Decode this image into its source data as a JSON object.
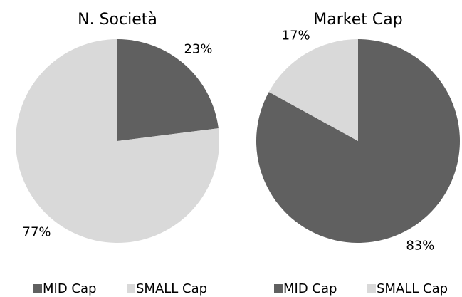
{
  "chart_data": [
    {
      "type": "pie",
      "title": "N. Società",
      "categories": [
        "MID Cap",
        "SMALL Cap"
      ],
      "values": [
        23,
        77
      ],
      "value_labels": [
        "23%",
        "77%"
      ],
      "colors": [
        "#606060",
        "#d9d9d9"
      ]
    },
    {
      "type": "pie",
      "title": "Market Cap",
      "categories": [
        "MID Cap",
        "SMALL Cap"
      ],
      "values": [
        83,
        17
      ],
      "value_labels": [
        "83%",
        "17%"
      ],
      "colors": [
        "#606060",
        "#d9d9d9"
      ]
    }
  ]
}
